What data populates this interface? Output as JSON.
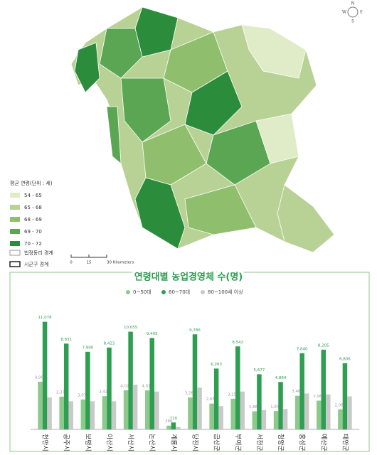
{
  "map": {
    "legend_title": "평균 연령(단위 : 세)",
    "legend": [
      "54 - 65",
      "65 - 68",
      "68 - 69",
      "69 - 70",
      "70 - 72"
    ],
    "boundary_legend": [
      "법정동리 경계",
      "시군구 경계"
    ],
    "scale_labels": [
      "0",
      "15",
      "30 Kilometers"
    ],
    "compass": [
      "N",
      "S",
      "E",
      "W"
    ]
  },
  "chart_data": {
    "type": "bar",
    "title": "연령대별 농업경영체 수(명)",
    "categories": [
      "천안시",
      "공주시",
      "보령시",
      "아산시",
      "서산시",
      "논산시",
      "계룡시",
      "당진시",
      "금산군",
      "부여군",
      "서천군",
      "청양군",
      "홍성군",
      "예산군",
      "태안군"
    ],
    "series": [
      {
        "name": "0~50대",
        "color": "#8cc98a",
        "values": [
          4909,
          3372,
          3077,
          3424,
          4024,
          4011,
          386,
          3287,
          2658,
          3155,
          1866,
          1893,
          3462,
          2965,
          2067
        ],
        "value_labels": [
          "4,909",
          "3,372",
          "3,077",
          "3,424",
          "4,024",
          "4,011",
          "386",
          "3,287",
          "2,658",
          "3,155",
          "1,866",
          "1,893",
          "3,462",
          "2,965",
          "2,067"
        ]
      },
      {
        "name": "60~70대",
        "color": "#2e9e52",
        "values": [
          11078,
          8831,
          7990,
          8423,
          10055,
          9405,
          710,
          9786,
          6263,
          8542,
          5677,
          4884,
          7840,
          8205,
          6806
        ],
        "value_labels": [
          "11,078",
          "8,831",
          "7,990",
          "8,423",
          "10,055",
          "9,405",
          "710",
          "9,786",
          "6,263",
          "8,542",
          "5,677",
          "4,884",
          "7,840",
          "8,205",
          "6,806"
        ]
      },
      {
        "name": "80~100세 이상",
        "color": "#c9c9c9",
        "values": [
          3300,
          2900,
          2900,
          2900,
          4600,
          3900,
          250,
          4300,
          2400,
          3900,
          2000,
          2100,
          3700,
          3600,
          3400
        ]
      }
    ],
    "ylim": [
      0,
      12000
    ]
  }
}
